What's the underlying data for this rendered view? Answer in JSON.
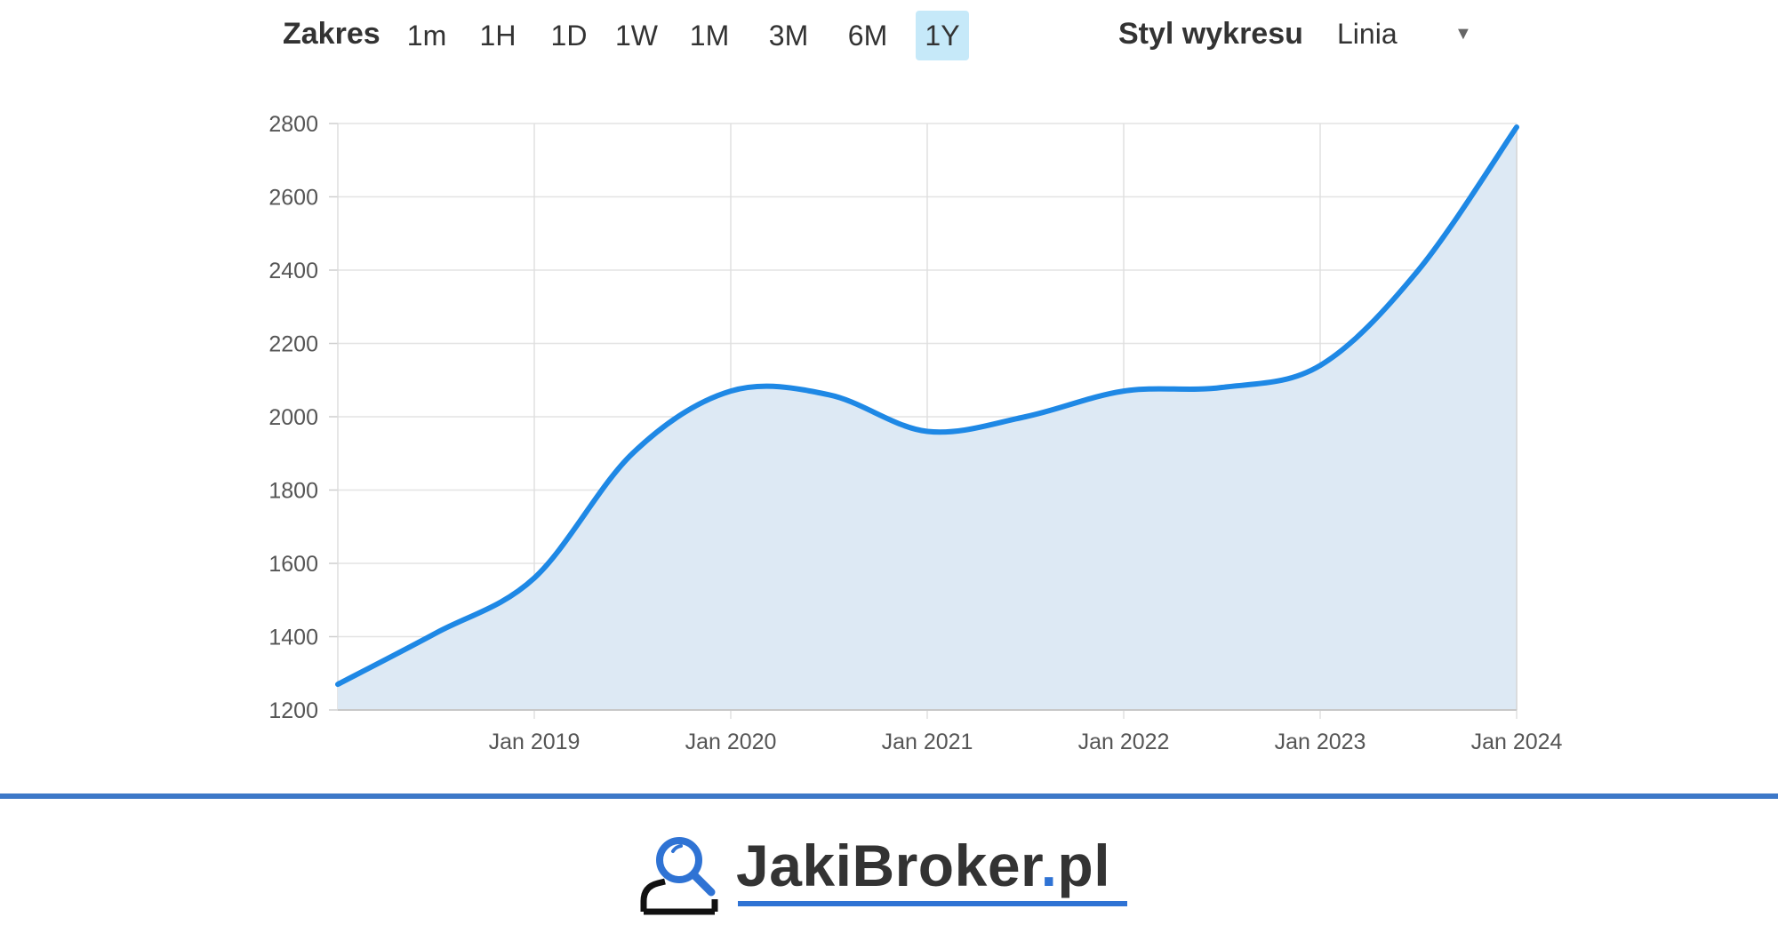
{
  "toolbar": {
    "range_label": "Zakres",
    "ranges": [
      "1m",
      "1H",
      "1D",
      "1W",
      "1M",
      "3M",
      "6M",
      "1Y"
    ],
    "active_range": "1Y",
    "style_label": "Styl wykresu",
    "style_value": "Linia",
    "caret_glyph": "▼"
  },
  "chart_data": {
    "type": "area",
    "title": "",
    "xlabel": "",
    "ylabel": "",
    "ylim": [
      1200,
      2800
    ],
    "yticks": [
      1200,
      1400,
      1600,
      1800,
      2000,
      2200,
      2400,
      2600,
      2800
    ],
    "xlim": [
      "2018-01",
      "2024-01"
    ],
    "xticks": [
      {
        "date": "2019-01",
        "label": "Jan 2019"
      },
      {
        "date": "2020-01",
        "label": "Jan 2020"
      },
      {
        "date": "2021-01",
        "label": "Jan 2021"
      },
      {
        "date": "2022-01",
        "label": "Jan 2022"
      },
      {
        "date": "2023-01",
        "label": "Jan 2023"
      },
      {
        "date": "2024-01",
        "label": "Jan 2024"
      }
    ],
    "grid": true,
    "line_color": "#1e88e5",
    "fill_color": "#dde9f4",
    "series": [
      {
        "points": [
          {
            "x": "2018-01",
            "y": 1270
          },
          {
            "x": "2018-07",
            "y": 1410
          },
          {
            "x": "2019-01",
            "y": 1560
          },
          {
            "x": "2019-07",
            "y": 1900
          },
          {
            "x": "2020-01",
            "y": 2070
          },
          {
            "x": "2020-07",
            "y": 2060
          },
          {
            "x": "2021-01",
            "y": 1960
          },
          {
            "x": "2021-07",
            "y": 2000
          },
          {
            "x": "2022-01",
            "y": 2070
          },
          {
            "x": "2022-07",
            "y": 2080
          },
          {
            "x": "2023-01",
            "y": 2140
          },
          {
            "x": "2023-07",
            "y": 2400
          },
          {
            "x": "2024-01",
            "y": 2790
          }
        ]
      }
    ]
  },
  "footer": {
    "logo_name": "JakiBroker",
    "logo_dot": ".",
    "logo_tld": "pl",
    "logo_icon": "magnifier-person-icon",
    "divider_color": "#3d78c8",
    "accent_color": "#2f73d4"
  }
}
